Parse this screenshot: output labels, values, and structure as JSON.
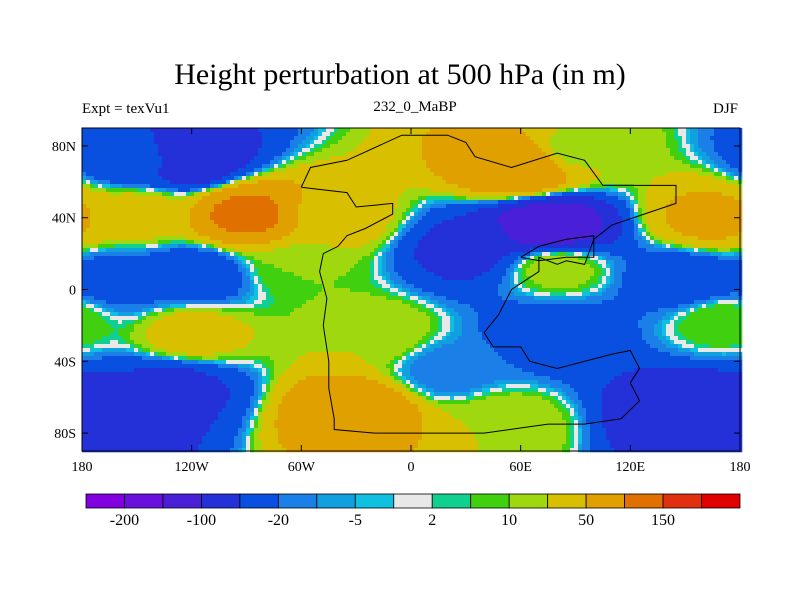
{
  "chart_data": {
    "type": "heatmap",
    "title": "Height perturbation at 500 hPa (in m)",
    "left_string": "Expt = texVu1",
    "center_string": "232_0_MaBP",
    "right_string": "DJF",
    "x_range": [
      -180,
      180
    ],
    "y_range": [
      -90,
      90
    ],
    "x_ticks": [
      {
        "value": -180,
        "label": "180"
      },
      {
        "value": -120,
        "label": "120W"
      },
      {
        "value": -60,
        "label": "60W"
      },
      {
        "value": 0,
        "label": "0"
      },
      {
        "value": 60,
        "label": "60E"
      },
      {
        "value": 120,
        "label": "120E"
      },
      {
        "value": 180,
        "label": "180"
      }
    ],
    "y_ticks": [
      {
        "value": 80,
        "label": "80N"
      },
      {
        "value": 40,
        "label": "40N"
      },
      {
        "value": 0,
        "label": "0"
      },
      {
        "value": -40,
        "label": "40S"
      },
      {
        "value": -80,
        "label": "80S"
      }
    ],
    "colorbar": {
      "colors": [
        "#8000e0",
        "#6a10dc",
        "#4a1fd8",
        "#2430d8",
        "#0a50e0",
        "#1a80e8",
        "#10a0e0",
        "#10c0e0",
        "#e8e8e8",
        "#10d090",
        "#40d010",
        "#a0d810",
        "#d8c000",
        "#e0a000",
        "#e07000",
        "#e03010",
        "#e00000"
      ],
      "levels": [
        -200,
        -150,
        -100,
        -50,
        -20,
        -10,
        -5,
        -2,
        2,
        5,
        10,
        20,
        50,
        100,
        150,
        200
      ],
      "labels": [
        {
          "level_index": 0,
          "text": "-200"
        },
        {
          "level_index": 2,
          "text": "-100"
        },
        {
          "level_index": 4,
          "text": "-20"
        },
        {
          "level_index": 6,
          "text": "-5"
        },
        {
          "level_index": 8,
          "text": "2"
        },
        {
          "level_index": 10,
          "text": "10"
        },
        {
          "level_index": 12,
          "text": "50"
        },
        {
          "level_index": 14,
          "text": "150"
        }
      ]
    },
    "field_features": [
      {
        "lon": -120,
        "lat": 72,
        "value": -80
      },
      {
        "lon": -150,
        "lat": 72,
        "value": -40
      },
      {
        "lon": -90,
        "lat": 42,
        "value": 110
      },
      {
        "lon": -150,
        "lat": 42,
        "value": 30
      },
      {
        "lon": -40,
        "lat": 40,
        "value": 30
      },
      {
        "lon": 60,
        "lat": 68,
        "value": 100
      },
      {
        "lon": 90,
        "lat": 78,
        "value": 15
      },
      {
        "lon": 75,
        "lat": 35,
        "value": -140
      },
      {
        "lon": 30,
        "lat": 22,
        "value": -60
      },
      {
        "lon": 165,
        "lat": 40,
        "value": 60
      },
      {
        "lon": -120,
        "lat": 8,
        "value": -40
      },
      {
        "lon": -160,
        "lat": 5,
        "value": -30
      },
      {
        "lon": -60,
        "lat": 12,
        "value": 10
      },
      {
        "lon": 80,
        "lat": 12,
        "value": 15
      },
      {
        "lon": 150,
        "lat": 5,
        "value": -40
      },
      {
        "lon": -120,
        "lat": -25,
        "value": 30
      },
      {
        "lon": -20,
        "lat": -25,
        "value": 20
      },
      {
        "lon": 80,
        "lat": -25,
        "value": -40
      },
      {
        "lon": 170,
        "lat": -18,
        "value": 10
      },
      {
        "lon": -130,
        "lat": -55,
        "value": -60
      },
      {
        "lon": 20,
        "lat": -45,
        "value": -15
      },
      {
        "lon": -170,
        "lat": -70,
        "value": -80
      },
      {
        "lon": -30,
        "lat": -68,
        "value": 90
      },
      {
        "lon": 50,
        "lat": -75,
        "value": 20
      },
      {
        "lon": 150,
        "lat": -68,
        "value": -90
      }
    ]
  }
}
